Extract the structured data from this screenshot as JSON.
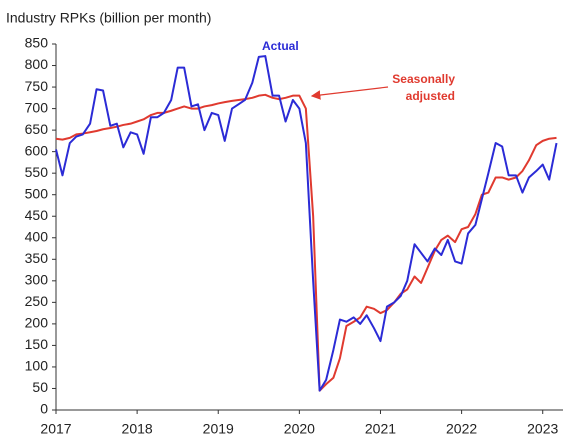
{
  "chart_data": {
    "type": "line",
    "y_label": "Industry RPKs (billion per month)",
    "annotations": [
      {
        "text": "Actual",
        "color": "#2b2bd6"
      },
      {
        "text": "Seasonally",
        "color": "#e03a2f"
      },
      {
        "text": "adjusted",
        "color": "#e03a2f"
      }
    ],
    "x": [
      2017,
      2017.08,
      2017.17,
      2017.25,
      2017.33,
      2017.42,
      2017.5,
      2017.58,
      2017.67,
      2017.75,
      2017.83,
      2017.92,
      2018,
      2018.08,
      2018.17,
      2018.25,
      2018.33,
      2018.42,
      2018.5,
      2018.58,
      2018.67,
      2018.75,
      2018.83,
      2018.92,
      2019,
      2019.08,
      2019.17,
      2019.25,
      2019.33,
      2019.42,
      2019.5,
      2019.58,
      2019.67,
      2019.75,
      2019.83,
      2019.92,
      2020,
      2020.08,
      2020.17,
      2020.25,
      2020.33,
      2020.42,
      2020.5,
      2020.58,
      2020.67,
      2020.75,
      2020.83,
      2020.92,
      2021,
      2021.08,
      2021.17,
      2021.25,
      2021.33,
      2021.42,
      2021.5,
      2021.58,
      2021.67,
      2021.75,
      2021.83,
      2021.92,
      2022,
      2022.08,
      2022.17,
      2022.25,
      2022.33,
      2022.42,
      2022.5,
      2022.58,
      2022.67,
      2022.75,
      2022.83,
      2022.92,
      2023,
      2023.08,
      2023.17
    ],
    "series": [
      {
        "name": "Actual",
        "color": "#2b2bd6",
        "values": [
          605,
          545,
          620,
          635,
          640,
          665,
          745,
          742,
          660,
          665,
          610,
          645,
          640,
          595,
          680,
          680,
          690,
          720,
          795,
          795,
          705,
          710,
          650,
          690,
          685,
          625,
          700,
          710,
          720,
          760,
          820,
          822,
          730,
          730,
          670,
          720,
          700,
          620,
          300,
          45,
          70,
          140,
          210,
          205,
          215,
          200,
          220,
          190,
          160,
          240,
          250,
          265,
          300,
          385,
          365,
          345,
          375,
          360,
          395,
          345,
          340,
          410,
          430,
          490,
          550,
          620,
          612,
          545,
          545,
          505,
          540,
          555,
          570,
          535,
          620
        ]
      },
      {
        "name": "Seasonally adjusted",
        "color": "#e03a2f",
        "values": [
          630,
          628,
          632,
          640,
          642,
          645,
          648,
          652,
          655,
          658,
          662,
          665,
          670,
          675,
          685,
          690,
          690,
          695,
          700,
          705,
          700,
          700,
          705,
          708,
          712,
          715,
          718,
          720,
          722,
          725,
          730,
          732,
          725,
          722,
          725,
          730,
          730,
          700,
          450,
          45,
          60,
          75,
          120,
          195,
          205,
          215,
          240,
          235,
          225,
          232,
          250,
          270,
          280,
          310,
          295,
          330,
          370,
          395,
          405,
          390,
          420,
          425,
          455,
          500,
          505,
          540,
          540,
          535,
          540,
          555,
          580,
          615,
          625,
          630,
          632
        ]
      }
    ],
    "xlim": [
      2017,
      2023.25
    ],
    "xticks": [
      2017,
      2018,
      2019,
      2020,
      2021,
      2022,
      2023
    ],
    "ylim": [
      0,
      850
    ],
    "yticks": [
      0,
      50,
      100,
      150,
      200,
      250,
      300,
      350,
      400,
      450,
      500,
      550,
      600,
      650,
      700,
      750,
      800,
      850
    ]
  }
}
